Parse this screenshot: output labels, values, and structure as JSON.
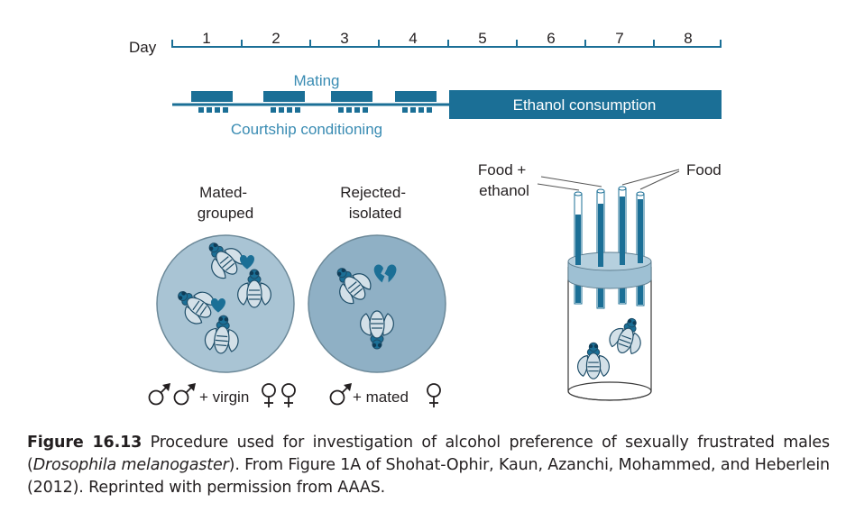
{
  "timeline": {
    "day_label": "Day",
    "days": [
      "1",
      "2",
      "3",
      "4",
      "5",
      "6",
      "7",
      "8"
    ],
    "mating_label": "Mating",
    "courtship_label": "Courtship conditioning",
    "ethanol_label": "Ethanol consumption"
  },
  "groups": {
    "mated_line1": "Mated-",
    "mated_line2": "grouped",
    "rejected_line1": "Rejected-",
    "rejected_line2": "isolated",
    "mated_legend_text": "+ virgin",
    "rejected_legend_text": "+ mated"
  },
  "apparatus": {
    "food_ethanol_line1": "Food +",
    "food_ethanol_line2": "ethanol",
    "food_label": "Food"
  },
  "caption": {
    "figure_label": "Figure 16.13",
    "text_before_species": " Procedure used for investigation of alcohol preference of sexually frustrated males (",
    "species": "Drosophila melanogaster",
    "text_after_species": "). From Figure 1A of Shohat-Ophir, Kaun, Azanchi, Mohammed, and Heberlein (2012). Reprinted with permission from AAAS."
  },
  "colors": {
    "teal": "#1b6f96",
    "teal_light": "#3a8cb3",
    "dish_mated": "#a9c4d4",
    "dish_rejected": "#8fb0c5",
    "dish_stroke": "#6c8999",
    "fly_fill": "#d3e0e8",
    "fly_stroke": "#1e4d68",
    "text_dark": "#231f20"
  },
  "icons": [
    "male-symbol-icon",
    "female-symbol-icon",
    "heart-icon",
    "broken-heart-icon",
    "fly-icon"
  ]
}
